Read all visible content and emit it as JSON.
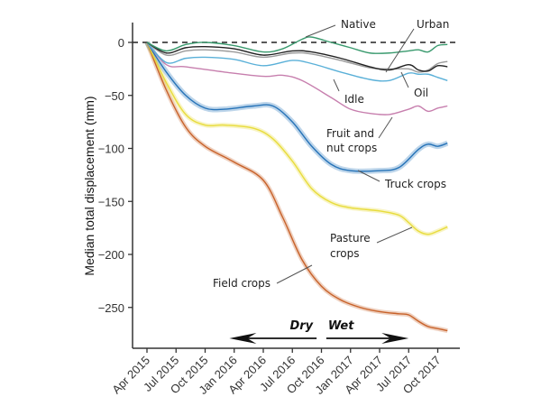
{
  "chart_data": {
    "type": "line",
    "title": "",
    "xlabel": "",
    "ylabel": "Median total displacement (mm)",
    "ylim": [
      -288,
      18
    ],
    "xlim_months_since_apr_2015": [
      -1.5,
      32.5
    ],
    "grid": false,
    "legend": "direct line labels",
    "y_ticks": [
      0,
      -50,
      -100,
      -150,
      -200,
      -250
    ],
    "y_tick_labels": [
      "0",
      "−50",
      "−100",
      "−150",
      "−200",
      "−250"
    ],
    "x_ticks_months": [
      0,
      3,
      6,
      9,
      12,
      15,
      18,
      21,
      24,
      27,
      30
    ],
    "x_tick_labels": [
      "Apr 2015",
      "Jul 2015",
      "Oct 2015",
      "Jan 2016",
      "Apr 2016",
      "Jul 2016",
      "Oct 2016",
      "Jan 2017",
      "Apr 2017",
      "Jul 2017",
      "Oct 2017"
    ],
    "reference_line": {
      "y": 0,
      "style": "dashed"
    },
    "periods": [
      {
        "label": "Dry",
        "direction": "left",
        "from_month": 17.5,
        "to_month": 8.5
      },
      {
        "label": "Wet",
        "direction": "right",
        "from_month": 18.5,
        "to_month": 27
      }
    ],
    "series": [
      {
        "name": "Native",
        "label": "Native",
        "color": "#3a9a6e",
        "x": [
          0,
          2,
          4,
          6,
          9,
          12,
          14,
          16,
          17,
          19,
          21,
          23,
          25,
          27,
          28,
          29,
          30,
          31
        ],
        "values": [
          0,
          -8,
          -2,
          0,
          -3,
          -9,
          -6,
          3,
          5,
          0,
          -5,
          -10,
          -10,
          -8,
          -7,
          -9,
          -3,
          -2
        ]
      },
      {
        "name": "Urban",
        "label": "Urban",
        "color": "#222222",
        "x": [
          0,
          2,
          4,
          6,
          9,
          12,
          15,
          17,
          20,
          23,
          25,
          27,
          28,
          29,
          30,
          31
        ],
        "values": [
          0,
          -10,
          -5,
          -4,
          -6,
          -12,
          -8,
          -9,
          -15,
          -23,
          -26,
          -21,
          -26,
          -27,
          -22,
          -23
        ]
      },
      {
        "name": "Oil",
        "label": "Oil",
        "color": "#9a9a9a",
        "x": [
          0,
          2,
          4,
          6,
          9,
          12,
          15,
          17,
          20,
          23,
          25,
          27,
          28,
          29,
          30,
          31
        ],
        "values": [
          0,
          -12,
          -8,
          -7,
          -9,
          -14,
          -10,
          -11,
          -17,
          -24,
          -25,
          -25,
          -28,
          -26,
          -20,
          -18
        ]
      },
      {
        "name": "Idle",
        "label": "Idle",
        "color": "#5ab0d8",
        "x": [
          0,
          2,
          4,
          6,
          9,
          12,
          15,
          17,
          20,
          23,
          25,
          27,
          28,
          29,
          30,
          31
        ],
        "values": [
          0,
          -19,
          -15,
          -14,
          -16,
          -22,
          -17,
          -20,
          -28,
          -35,
          -36,
          -29,
          -30,
          -30,
          -33,
          -36
        ]
      },
      {
        "name": "Fruit and nut crops",
        "label": "Fruit and nut crops",
        "color": "#c77fae",
        "x": [
          0,
          2,
          4,
          8,
          12,
          14,
          16,
          19,
          21,
          23,
          25,
          27,
          28,
          29,
          30,
          31
        ],
        "values": [
          0,
          -21,
          -23,
          -28,
          -32,
          -31,
          -36,
          -52,
          -63,
          -67,
          -68,
          -63,
          -60,
          -65,
          -62,
          -60
        ]
      },
      {
        "name": "Truck crops",
        "label": "Truck crops",
        "color": "#2673b8",
        "x": [
          0,
          2,
          4,
          6,
          8,
          11,
          13,
          15,
          17,
          19,
          21,
          24,
          26,
          28,
          29,
          30,
          31
        ],
        "values": [
          0,
          -28,
          -50,
          -62,
          -63,
          -60,
          -60,
          -75,
          -98,
          -115,
          -121,
          -121,
          -118,
          -101,
          -96,
          -98,
          -95
        ]
      },
      {
        "name": "Pasture crops",
        "label": "Pasture crops",
        "color": "#e8dc3c",
        "x": [
          0,
          2,
          4,
          6,
          8,
          11,
          13,
          15,
          17,
          19,
          21,
          24,
          26,
          27,
          28,
          29,
          30,
          31
        ],
        "values": [
          0,
          -38,
          -68,
          -78,
          -78,
          -81,
          -91,
          -112,
          -138,
          -151,
          -156,
          -159,
          -163,
          -170,
          -178,
          -181,
          -178,
          -174
        ]
      },
      {
        "name": "Field crops",
        "label": "Field crops",
        "color": "#c8622a",
        "x": [
          0,
          2,
          4,
          6,
          9,
          12,
          14,
          16,
          18,
          20,
          22,
          24,
          26,
          27,
          28,
          29,
          30,
          31
        ],
        "values": [
          0,
          -45,
          -80,
          -98,
          -113,
          -130,
          -165,
          -205,
          -230,
          -243,
          -250,
          -254,
          -256,
          -257,
          -263,
          -268,
          -270,
          -272
        ]
      }
    ],
    "annotations": [
      {
        "text_lines": [
          "Native"
        ],
        "series": "Native"
      },
      {
        "text_lines": [
          "Urban"
        ],
        "series": "Urban"
      },
      {
        "text_lines": [
          "Oil"
        ],
        "series": "Oil"
      },
      {
        "text_lines": [
          "Idle"
        ],
        "series": "Idle"
      },
      {
        "text_lines": [
          "Fruit and",
          "nut crops"
        ],
        "series": "Fruit and nut crops"
      },
      {
        "text_lines": [
          "Truck crops"
        ],
        "series": "Truck crops"
      },
      {
        "text_lines": [
          "Pasture",
          "crops"
        ],
        "series": "Pasture crops"
      },
      {
        "text_lines": [
          "Field crops"
        ],
        "series": "Field crops"
      }
    ]
  }
}
